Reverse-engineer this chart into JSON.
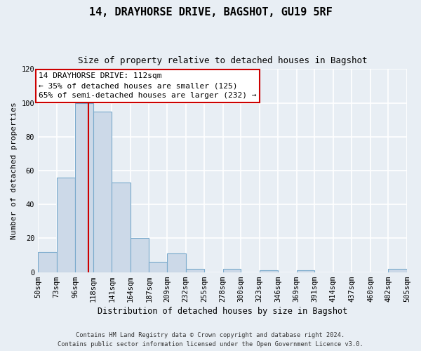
{
  "title": "14, DRAYHORSE DRIVE, BAGSHOT, GU19 5RF",
  "subtitle": "Size of property relative to detached houses in Bagshot",
  "xlabel": "Distribution of detached houses by size in Bagshot",
  "ylabel": "Number of detached properties",
  "bar_color": "#ccd9e8",
  "bar_edge_color": "#7aaacc",
  "bins": [
    50,
    73,
    96,
    118,
    141,
    164,
    187,
    209,
    232,
    255,
    278,
    300,
    323,
    346,
    369,
    391,
    414,
    437,
    460,
    482,
    505
  ],
  "bin_labels": [
    "50sqm",
    "73sqm",
    "96sqm",
    "118sqm",
    "141sqm",
    "164sqm",
    "187sqm",
    "209sqm",
    "232sqm",
    "255sqm",
    "278sqm",
    "300sqm",
    "323sqm",
    "346sqm",
    "369sqm",
    "391sqm",
    "414sqm",
    "437sqm",
    "460sqm",
    "482sqm",
    "505sqm"
  ],
  "counts": [
    12,
    56,
    100,
    95,
    53,
    20,
    6,
    11,
    2,
    0,
    2,
    0,
    1,
    0,
    1,
    0,
    0,
    0,
    0,
    2
  ],
  "vline_x": 112,
  "annotation_title": "14 DRAYHORSE DRIVE: 112sqm",
  "annotation_line1": "← 35% of detached houses are smaller (125)",
  "annotation_line2": "65% of semi-detached houses are larger (232) →",
  "annotation_box_color": "white",
  "annotation_box_edge": "#cc0000",
  "vline_color": "#cc0000",
  "ylim": [
    0,
    120
  ],
  "yticks": [
    0,
    20,
    40,
    60,
    80,
    100,
    120
  ],
  "footer1": "Contains HM Land Registry data © Crown copyright and database right 2024.",
  "footer2": "Contains public sector information licensed under the Open Government Licence v3.0.",
  "bg_color": "#e8eef4",
  "grid_color": "#ffffff",
  "title_fontsize": 11,
  "subtitle_fontsize": 9,
  "ylabel_fontsize": 8,
  "xlabel_fontsize": 8.5,
  "tick_fontsize": 7.5,
  "ann_fontsize": 8,
  "footer_fontsize": 6.2
}
